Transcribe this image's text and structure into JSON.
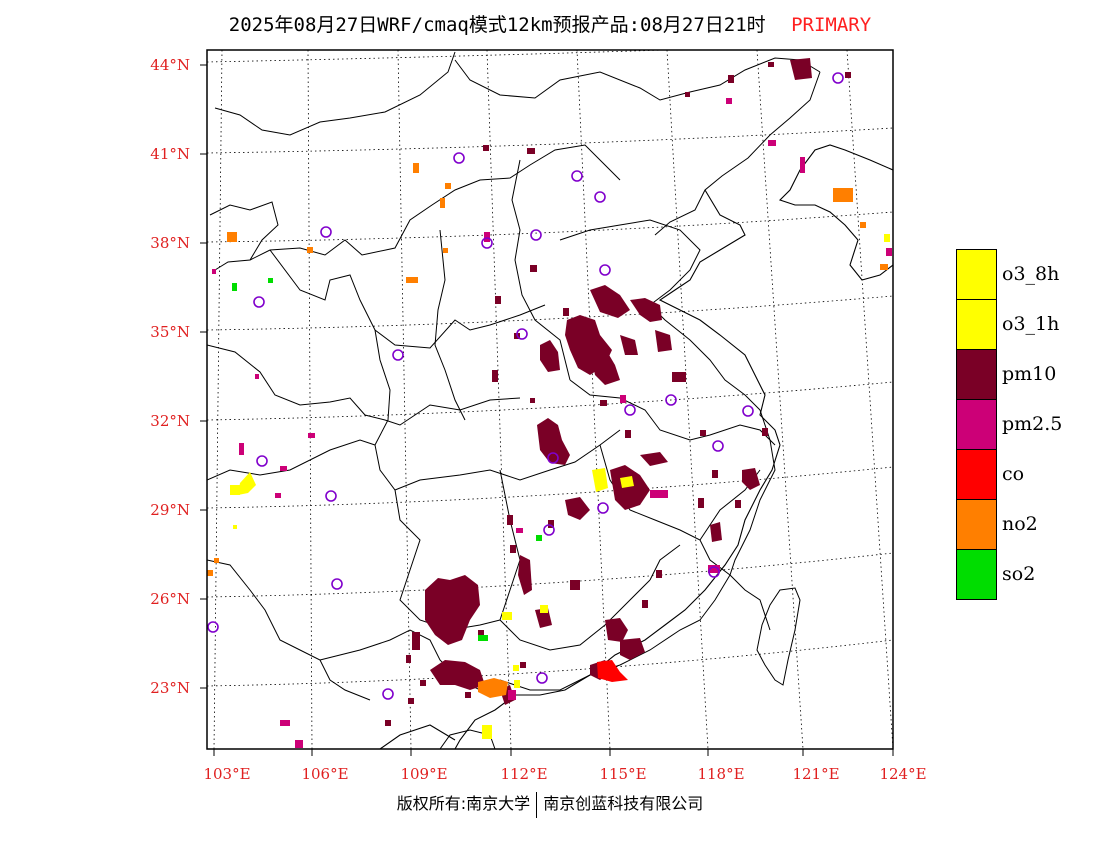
{
  "title": {
    "main": "2025年08月27日WRF/cmaq模式12km预报产品:08月27日21时",
    "primary": "PRIMARY"
  },
  "lat_labels": [
    "44°N",
    "41°N",
    "38°N",
    "35°N",
    "32°N",
    "29°N",
    "26°N",
    "23°N"
  ],
  "lon_labels": [
    "103°E",
    "106°E",
    "109°E",
    "112°E",
    "115°E",
    "118°E",
    "121°E",
    "124°E"
  ],
  "legend": [
    {
      "label": "o3_8h",
      "color": "#ffff00"
    },
    {
      "label": "o3_1h",
      "color": "#ffff00"
    },
    {
      "label": "pm10",
      "color": "#7a0026"
    },
    {
      "label": "pm2.5",
      "color": "#cc0077"
    },
    {
      "label": "co",
      "color": "#ff0000"
    },
    {
      "label": "no2",
      "color": "#ff7f00"
    },
    {
      "label": "so2",
      "color": "#00dd00"
    }
  ],
  "footer": {
    "left": "版权所有:南京大学",
    "right": "南京创蓝科技有限公司"
  },
  "colors": {
    "axis_label": "#e02020",
    "pm10": "#7a0026",
    "pm25": "#cc0077",
    "o3": "#ffff00",
    "co": "#ff0000",
    "no2": "#ff7f00",
    "so2": "#00dd00",
    "station": "#8000cc"
  }
}
